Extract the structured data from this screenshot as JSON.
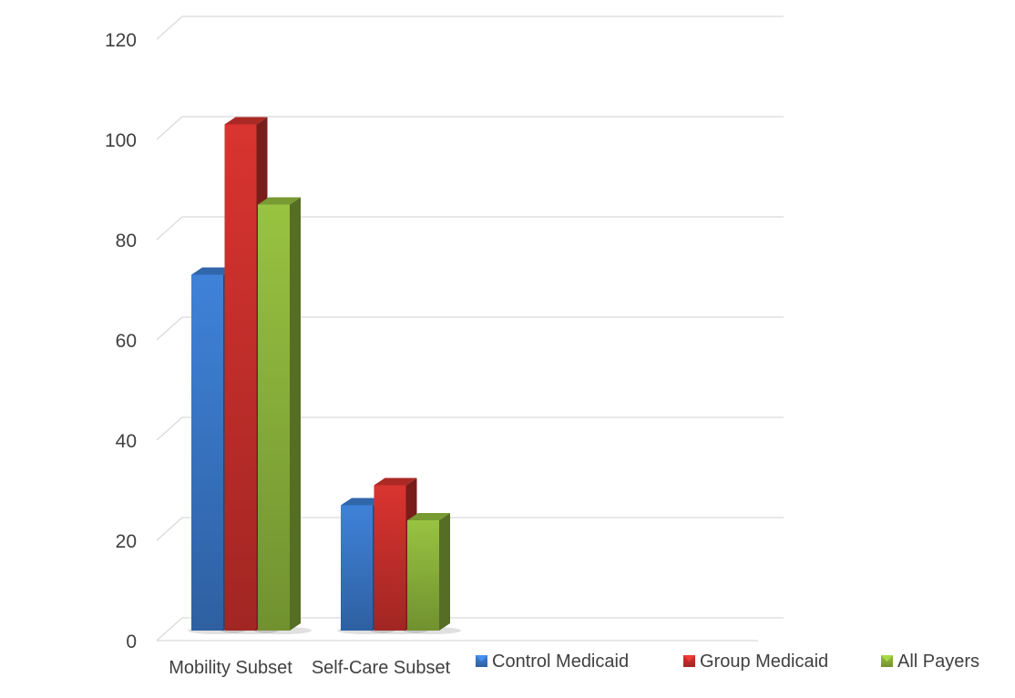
{
  "chart_data": {
    "type": "bar",
    "title": "",
    "xlabel": "",
    "ylabel": "",
    "categories": [
      "Mobility Subset",
      "Self-Care Subset"
    ],
    "series": [
      {
        "name": "Control Medicaid",
        "values": [
          71,
          25
        ],
        "color": "#3a78c9"
      },
      {
        "name": "Group Medicaid",
        "values": [
          101,
          29
        ],
        "color": "#c9302c"
      },
      {
        "name": "All Payers",
        "values": [
          85,
          22
        ],
        "color": "#8db53c"
      }
    ],
    "ylim": [
      0,
      120
    ],
    "yticks": [
      0,
      20,
      40,
      60,
      80,
      100,
      120
    ],
    "grid": true,
    "legend_position": "bottom-right",
    "style": "3d-column"
  }
}
